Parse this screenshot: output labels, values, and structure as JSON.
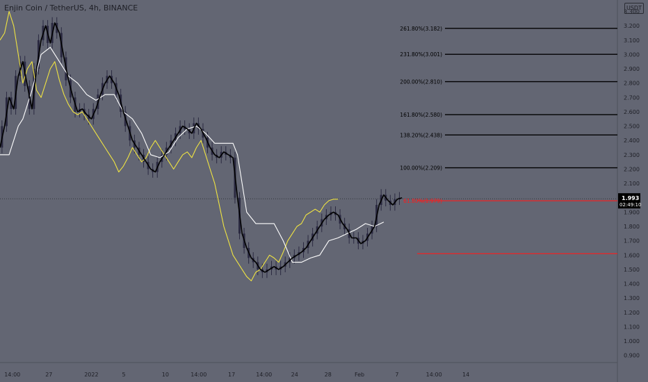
{
  "symbol_label": "Enjin Coin / TetherUS, 4h, BINANCE",
  "currency_button": "USDT",
  "price_label": "1.993",
  "countdown_label": "02:49:10",
  "colors": {
    "background": "#636673",
    "price_line": "#000000",
    "ma_white": "#ffffff",
    "ma_yellow": "#f0e442",
    "fib_line": "#000000",
    "red_line": "#ff1a1a",
    "candle": "#2a2940"
  },
  "chart_data": {
    "type": "line",
    "y_axis": {
      "min": 0.85,
      "max": 3.38,
      "ticks": [
        "0.900",
        "1.000",
        "1.100",
        "1.200",
        "1.300",
        "1.400",
        "1.500",
        "1.600",
        "1.700",
        "1.800",
        "1.900",
        "2.000",
        "2.100",
        "2.200",
        "2.300",
        "2.400",
        "2.500",
        "2.600",
        "2.700",
        "2.800",
        "2.900",
        "3.000",
        "3.100",
        "3.200",
        "3.300"
      ]
    },
    "x_axis": {
      "range": [
        0,
        100
      ],
      "ticks": [
        {
          "x": 2.7,
          "label": "14:00"
        },
        {
          "x": 10.7,
          "label": "27"
        },
        {
          "x": 20.0,
          "label": "2022"
        },
        {
          "x": 27.1,
          "label": "5"
        },
        {
          "x": 36.2,
          "label": "10"
        },
        {
          "x": 43.5,
          "label": "14:00"
        },
        {
          "x": 50.7,
          "label": "17"
        },
        {
          "x": 57.8,
          "label": "14:00"
        },
        {
          "x": 64.5,
          "label": "24"
        },
        {
          "x": 71.8,
          "label": "28"
        },
        {
          "x": 78.7,
          "label": "Feb"
        },
        {
          "x": 86.9,
          "label": "7"
        },
        {
          "x": 95.0,
          "label": "14:00"
        },
        {
          "x": 102.0,
          "label": "14"
        }
      ]
    },
    "fib_levels": [
      {
        "label": "261.80%(3.182)",
        "value": 3.182
      },
      {
        "label": "231.80%(3.001)",
        "value": 3.001
      },
      {
        "label": "200.00%(2.810)",
        "value": 2.81
      },
      {
        "label": "161.80%(2.580)",
        "value": 2.58
      },
      {
        "label": "138.20%(2.438)",
        "value": 2.438
      },
      {
        "label": "100.00%(2.209)",
        "value": 2.209
      }
    ],
    "red_levels": [
      {
        "label": "61.80%(1.979)",
        "value": 1.979
      },
      {
        "value": 1.61
      }
    ],
    "current_price": 1.993,
    "series": [
      {
        "id": "price",
        "x": [
          0,
          1,
          2,
          3,
          4,
          5,
          6,
          7,
          8,
          9,
          10,
          11,
          12,
          13,
          14,
          15,
          16,
          17,
          18,
          19,
          20,
          21,
          22,
          23,
          24,
          25,
          26,
          27,
          28,
          29,
          30,
          31,
          32,
          33,
          34,
          35,
          36,
          37,
          38,
          39,
          40,
          41,
          42,
          43,
          44,
          45,
          46,
          47,
          48,
          49,
          50,
          51,
          52,
          53,
          54,
          55,
          56,
          57,
          58,
          59,
          60,
          61,
          62,
          63,
          64,
          65,
          66,
          67,
          68,
          69,
          70,
          71,
          72,
          73,
          74,
          75,
          76,
          77,
          78,
          79,
          80,
          81,
          82,
          83,
          84,
          85,
          86,
          87,
          88
        ],
        "y": [
          2.35,
          2.5,
          2.7,
          2.62,
          2.85,
          2.95,
          2.78,
          2.62,
          2.9,
          3.1,
          3.2,
          3.08,
          3.22,
          3.15,
          2.98,
          2.82,
          2.7,
          2.6,
          2.62,
          2.58,
          2.55,
          2.62,
          2.72,
          2.8,
          2.85,
          2.8,
          2.72,
          2.6,
          2.5,
          2.4,
          2.35,
          2.3,
          2.25,
          2.2,
          2.18,
          2.25,
          2.3,
          2.35,
          2.4,
          2.45,
          2.5,
          2.48,
          2.45,
          2.52,
          2.48,
          2.42,
          2.35,
          2.3,
          2.28,
          2.32,
          2.3,
          2.28,
          2.0,
          1.75,
          1.65,
          1.58,
          1.55,
          1.5,
          1.48,
          1.5,
          1.52,
          1.5,
          1.52,
          1.55,
          1.58,
          1.6,
          1.62,
          1.65,
          1.7,
          1.75,
          1.8,
          1.85,
          1.88,
          1.9,
          1.88,
          1.82,
          1.78,
          1.72,
          1.72,
          1.68,
          1.7,
          1.75,
          1.8,
          1.95,
          2.02,
          1.98,
          1.95,
          1.99,
          2.0
        ]
      },
      {
        "id": "ma-white",
        "x": [
          0,
          2,
          4,
          5,
          7,
          9,
          11,
          13,
          15,
          17,
          19,
          21,
          23,
          25,
          27,
          29,
          31,
          33,
          35,
          37,
          39,
          41,
          43,
          45,
          47,
          49,
          51,
          52,
          53,
          54,
          56,
          58,
          60,
          62,
          64,
          66,
          68,
          70,
          72,
          74,
          76,
          78,
          80,
          82,
          84
        ],
        "y": [
          2.3,
          2.3,
          2.5,
          2.55,
          2.75,
          3.0,
          3.05,
          2.95,
          2.85,
          2.8,
          2.72,
          2.68,
          2.72,
          2.72,
          2.6,
          2.55,
          2.45,
          2.3,
          2.28,
          2.32,
          2.42,
          2.48,
          2.5,
          2.45,
          2.38,
          2.38,
          2.38,
          2.3,
          2.1,
          1.9,
          1.82,
          1.82,
          1.82,
          1.7,
          1.55,
          1.55,
          1.58,
          1.6,
          1.7,
          1.72,
          1.75,
          1.78,
          1.82,
          1.8,
          1.83
        ]
      },
      {
        "id": "ma-yellow",
        "x": [
          0,
          1,
          2,
          3,
          4,
          5,
          6,
          7,
          8,
          9,
          10,
          11,
          12,
          13,
          14,
          15,
          16,
          17,
          18,
          19,
          20,
          21,
          22,
          23,
          24,
          25,
          26,
          27,
          28,
          29,
          30,
          31,
          32,
          33,
          34,
          35,
          36,
          37,
          38,
          39,
          40,
          41,
          42,
          43,
          44,
          45,
          46,
          47,
          48,
          49,
          50,
          51,
          52,
          53,
          54,
          55,
          56,
          57,
          58,
          59,
          60,
          61,
          62,
          63,
          64,
          65,
          66,
          67,
          68,
          69,
          70,
          71,
          72,
          73,
          74
        ],
        "y": [
          3.1,
          3.15,
          3.3,
          3.2,
          3.0,
          2.8,
          2.9,
          2.95,
          2.75,
          2.7,
          2.8,
          2.9,
          2.95,
          2.82,
          2.72,
          2.65,
          2.6,
          2.58,
          2.6,
          2.55,
          2.5,
          2.45,
          2.4,
          2.35,
          2.3,
          2.25,
          2.18,
          2.22,
          2.28,
          2.35,
          2.3,
          2.25,
          2.28,
          2.35,
          2.4,
          2.35,
          2.3,
          2.25,
          2.2,
          2.25,
          2.3,
          2.32,
          2.28,
          2.35,
          2.4,
          2.3,
          2.2,
          2.1,
          1.95,
          1.8,
          1.7,
          1.6,
          1.55,
          1.5,
          1.45,
          1.42,
          1.48,
          1.5,
          1.55,
          1.6,
          1.58,
          1.55,
          1.62,
          1.7,
          1.75,
          1.8,
          1.82,
          1.88,
          1.9,
          1.92,
          1.9,
          1.95,
          1.98,
          1.99,
          1.99
        ]
      }
    ]
  }
}
